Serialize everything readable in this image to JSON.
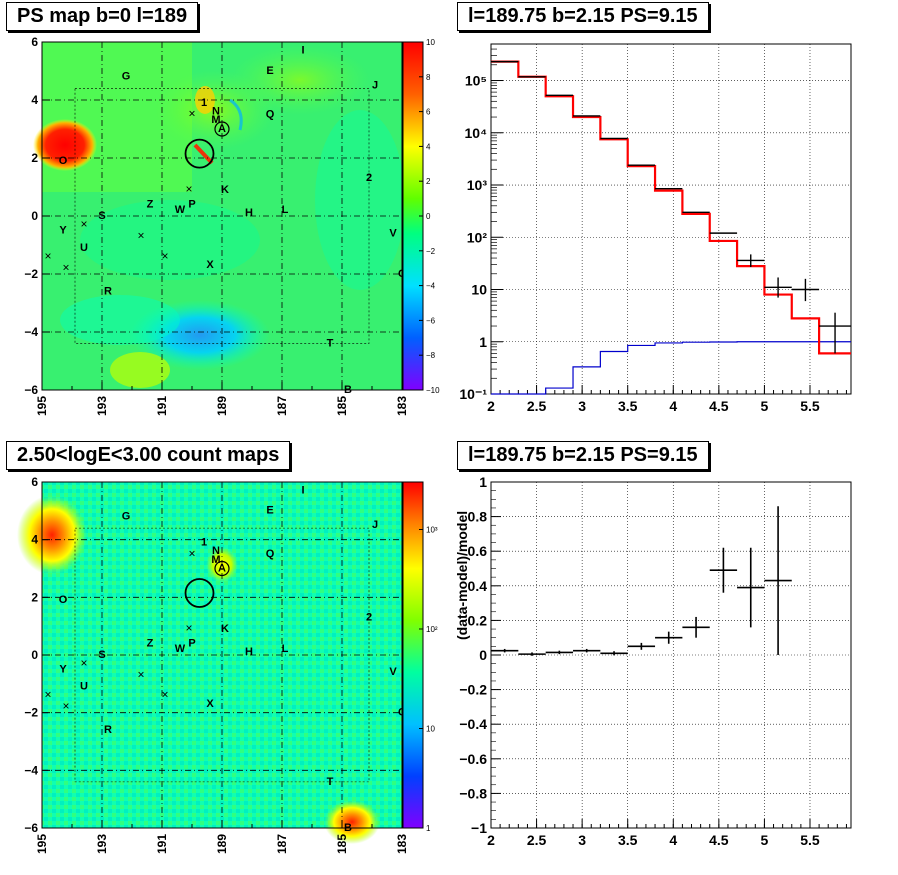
{
  "panels": {
    "map1": {
      "title": "PS map b=0 l=189"
    },
    "spec": {
      "title": "l=189.75 b=2.15 PS=9.15"
    },
    "map2": {
      "title": "2.50<logE<3.00 count maps"
    },
    "resid": {
      "title": "l=189.75 b=2.15 PS=9.15"
    }
  },
  "colors": {
    "data": "#000000",
    "model": "#ff0000",
    "background": "#0000cc",
    "ring": "#000000"
  },
  "map_axes": {
    "x_ticks": [
      "195",
      "193",
      "191",
      "189",
      "187",
      "185",
      "183"
    ],
    "y_ticks": [
      "6",
      "4",
      "2",
      "0",
      "−2",
      "−4",
      "−6"
    ]
  },
  "map1_colorbar": {
    "ticks": [
      "10",
      "8",
      "6",
      "4",
      "2",
      "0",
      "−2",
      "−4",
      "−6",
      "−8",
      "−10"
    ],
    "range": [
      -10,
      10
    ]
  },
  "map2_colorbar": {
    "ticks": [
      "10³",
      "10²",
      "10",
      "1"
    ],
    "scale": "log",
    "range": [
      1,
      3000
    ]
  },
  "source_labels": [
    {
      "label": "I",
      "l": 186.3,
      "b": 5.7
    },
    {
      "label": "G",
      "l": 192.2,
      "b": 4.8
    },
    {
      "label": "E",
      "l": 187.4,
      "b": 5.0
    },
    {
      "label": "J",
      "l": 183.9,
      "b": 4.5
    },
    {
      "label": "1",
      "l": 189.6,
      "b": 3.9
    },
    {
      "label": "N",
      "l": 189.2,
      "b": 3.6
    },
    {
      "label": "M",
      "l": 189.2,
      "b": 3.3
    },
    {
      "label": "A",
      "l": 189.0,
      "b": 3.0
    },
    {
      "label": "Q",
      "l": 187.4,
      "b": 3.5
    },
    {
      "label": "O",
      "l": 194.3,
      "b": 1.9
    },
    {
      "label": "2",
      "l": 184.1,
      "b": 1.3
    },
    {
      "label": "K",
      "l": 188.9,
      "b": 0.9
    },
    {
      "label": "Z",
      "l": 191.4,
      "b": 0.4
    },
    {
      "label": "W",
      "l": 190.4,
      "b": 0.2
    },
    {
      "label": "P",
      "l": 190.0,
      "b": 0.4
    },
    {
      "label": "H",
      "l": 188.1,
      "b": 0.1
    },
    {
      "label": "L",
      "l": 186.9,
      "b": 0.2
    },
    {
      "label": "S",
      "l": 193.0,
      "b": 0.0
    },
    {
      "label": "Y",
      "l": 194.3,
      "b": -0.5
    },
    {
      "label": "V",
      "l": 183.3,
      "b": -0.6
    },
    {
      "label": "U",
      "l": 193.6,
      "b": -1.1
    },
    {
      "label": "X",
      "l": 189.4,
      "b": -1.7
    },
    {
      "label": "C",
      "l": 183.0,
      "b": -2.0
    },
    {
      "label": "R",
      "l": 192.8,
      "b": -2.6
    },
    {
      "label": "T",
      "l": 185.4,
      "b": -4.4
    },
    {
      "label": "B",
      "l": 184.8,
      "b": -6.0
    }
  ],
  "cross_marks": [
    {
      "l": 190.0,
      "b": 3.5
    },
    {
      "l": 190.1,
      "b": 0.9
    },
    {
      "l": 193.6,
      "b": -0.3
    },
    {
      "l": 191.7,
      "b": -0.7
    },
    {
      "l": 194.8,
      "b": -1.4
    },
    {
      "l": 190.9,
      "b": -1.4
    },
    {
      "l": 194.2,
      "b": -1.8
    }
  ],
  "circle": {
    "l": 189.75,
    "b": 2.15
  },
  "chart_data": [
    {
      "type": "line",
      "title": "l=189.75 b=2.15 PS=9.15",
      "xlabel": "",
      "ylabel": "",
      "xlim": [
        2,
        5.95
      ],
      "ylim": [
        0.1,
        500000
      ],
      "yscale": "log",
      "grid": true,
      "x_ticks": [
        "2",
        "2.5",
        "3",
        "3.5",
        "4",
        "4.5",
        "5",
        "5.5"
      ],
      "y_ticks": [
        "10⁻¹",
        "1",
        "10",
        "10²",
        "10³",
        "10⁴",
        "10⁵"
      ],
      "bin_edges": [
        2.0,
        2.3,
        2.6,
        2.9,
        3.2,
        3.5,
        3.8,
        4.1,
        4.4,
        4.7,
        5.0,
        5.3,
        5.6,
        5.95
      ],
      "series": [
        {
          "values": [
            230000,
            118000,
            52000,
            21000,
            7800,
            2400,
            850,
            300,
            120,
            36,
            11,
            10,
            2
          ]
        },
        {
          "values": [
            230000,
            118000,
            50000,
            20000,
            7500,
            2300,
            780,
            280,
            85,
            28,
            8,
            2.8,
            0.6
          ]
        },
        {
          "values": [
            0.05,
            0.08,
            0.13,
            0.33,
            0.65,
            0.85,
            0.95,
            0.98,
            0.99,
            1.0,
            1.0,
            1.0,
            1.0
          ]
        }
      ],
      "y_err_low": [
        0,
        0,
        0,
        0,
        0,
        0,
        0,
        0,
        0,
        9,
        4,
        4,
        1.4
      ],
      "y_err_high": [
        0,
        0,
        0,
        0,
        0,
        0,
        0,
        0,
        0,
        11,
        6,
        6,
        1.6
      ]
    },
    {
      "type": "scatter",
      "title": "l=189.75 b=2.15 PS=9.15",
      "xlabel": "",
      "ylabel": "(data-model)/model",
      "xlim": [
        2,
        5.95
      ],
      "ylim": [
        -1,
        1
      ],
      "grid": true,
      "x_ticks": [
        "2",
        "2.5",
        "3",
        "3.5",
        "4",
        "4.5",
        "5",
        "5.5"
      ],
      "y_ticks": [
        "1",
        "0.8",
        "0.6",
        "0.4",
        "0.2",
        "0",
        "−0.2",
        "−0.4",
        "−0.6",
        "−0.8",
        "−1"
      ],
      "x": [
        2.15,
        2.45,
        2.75,
        3.05,
        3.35,
        3.65,
        3.95,
        4.25,
        4.55,
        4.85,
        5.15
      ],
      "x_err": [
        0.15,
        0.15,
        0.15,
        0.15,
        0.15,
        0.15,
        0.15,
        0.15,
        0.15,
        0.15,
        0.15
      ],
      "values": [
        0.025,
        0.005,
        0.015,
        0.025,
        0.01,
        0.05,
        0.1,
        0.16,
        0.49,
        0.39,
        0.43
      ],
      "y_err": [
        0.01,
        0.01,
        0.01,
        0.01,
        0.012,
        0.02,
        0.035,
        0.06,
        0.13,
        0.23,
        0.43
      ]
    }
  ]
}
